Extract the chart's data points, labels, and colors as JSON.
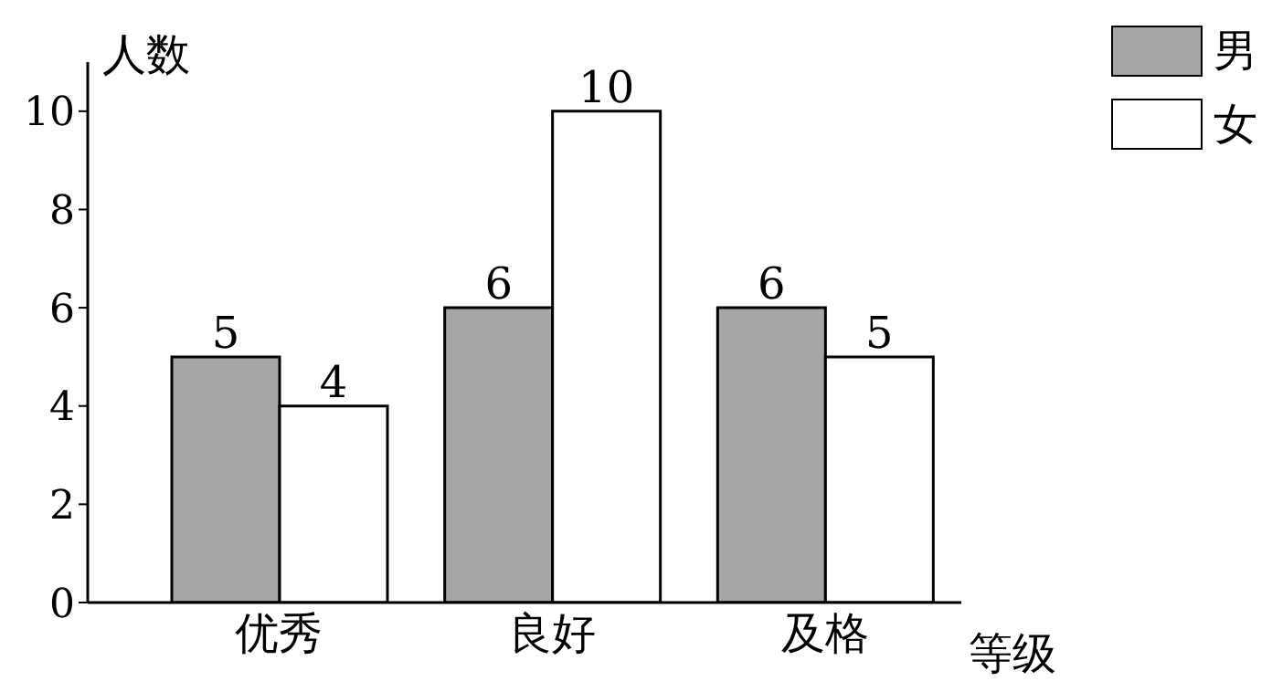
{
  "chart_data": {
    "type": "bar",
    "categories": [
      "优秀",
      "良好",
      "及格"
    ],
    "xlabel": "等级",
    "ylabel": "人数",
    "series": [
      {
        "name": "男",
        "color": "#a6a6a6",
        "values": [
          5,
          6,
          6
        ]
      },
      {
        "name": "女",
        "color": "#ffffff",
        "values": [
          4,
          10,
          5
        ]
      }
    ],
    "ylim": [
      0,
      11
    ],
    "yticks": [
      0,
      2,
      4,
      6,
      8,
      10
    ],
    "data_labels": true,
    "grid": false,
    "legend": "top right"
  }
}
